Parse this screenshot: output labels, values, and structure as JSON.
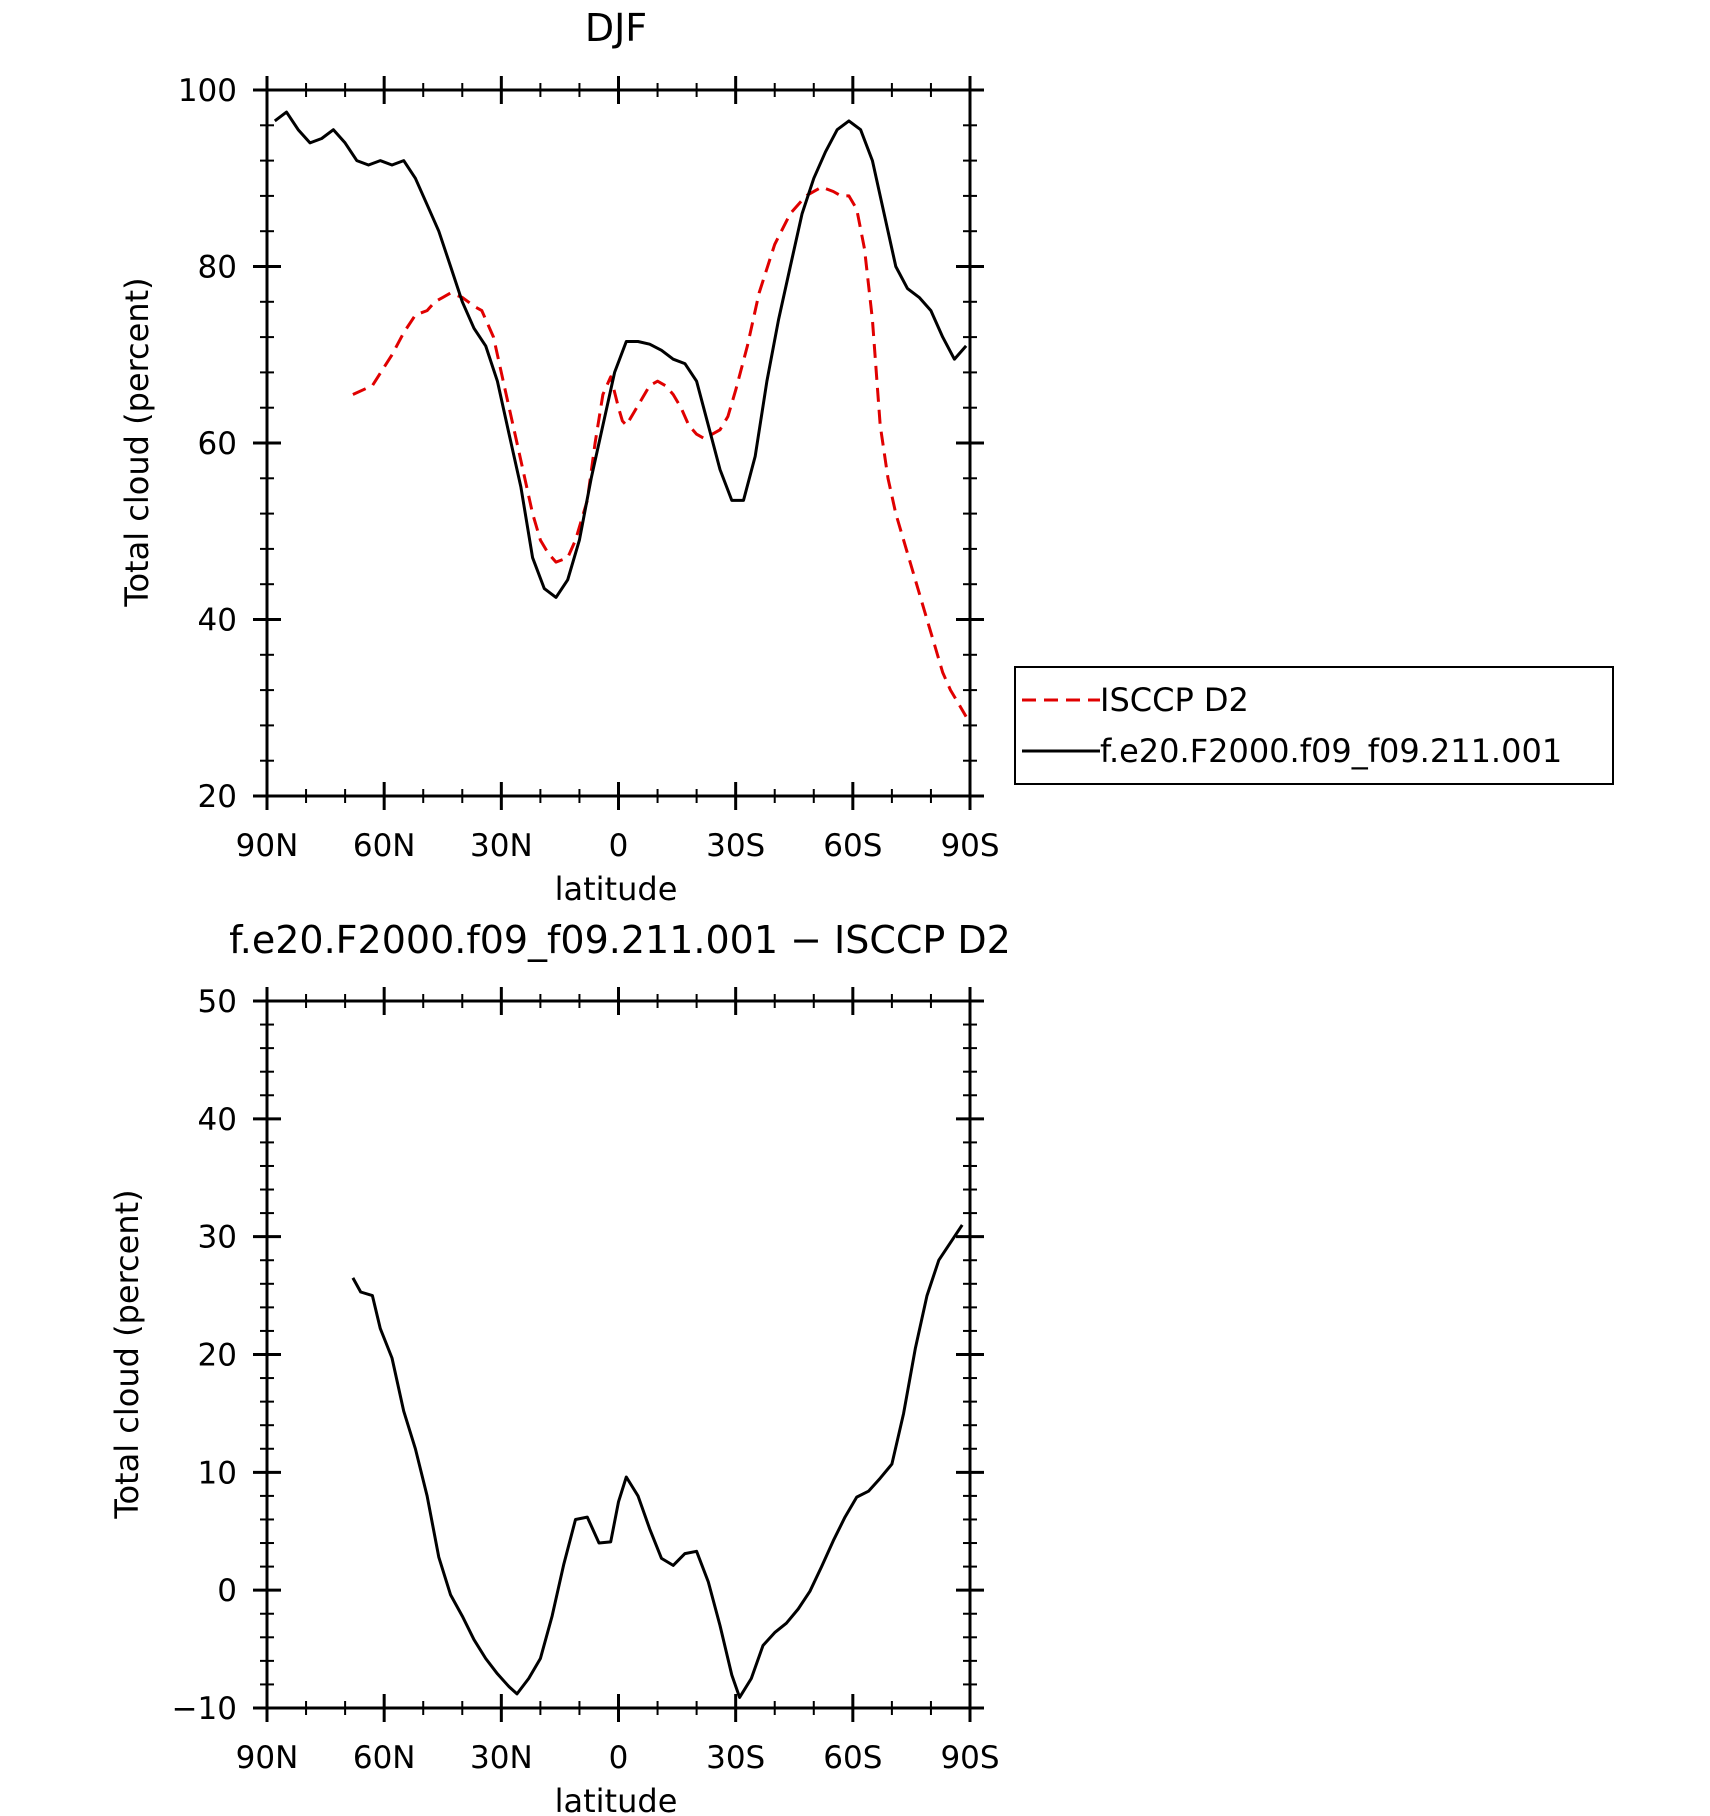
{
  "chart_data": [
    {
      "type": "line",
      "title": "DJF",
      "xlabel": "latitude",
      "ylabel": "Total cloud (percent)",
      "xlim": [
        90,
        -90
      ],
      "ylim": [
        20,
        100
      ],
      "xticks": [
        90,
        60,
        30,
        0,
        -30,
        -60,
        -90
      ],
      "xtick_labels": [
        "90N",
        "60N",
        "30N",
        "0",
        "30S",
        "60S",
        "90S"
      ],
      "yticks": [
        20,
        40,
        60,
        80,
        100
      ],
      "ytick_labels": [
        "20",
        "40",
        "60",
        "80",
        "100"
      ],
      "legend_position": "right",
      "series": [
        {
          "name": "ISCCP D2",
          "color": "#e00000",
          "style": "dashed",
          "x": [
            68,
            63,
            58,
            55,
            52,
            49,
            47,
            45,
            43,
            40,
            37,
            35,
            32,
            29,
            26,
            24,
            22,
            20,
            18,
            16,
            13,
            11,
            8,
            6,
            4,
            2,
            0,
            -1,
            -2,
            -4,
            -6,
            -8,
            -10,
            -12,
            -14,
            -16,
            -18,
            -20,
            -22,
            -24,
            -26,
            -28,
            -30,
            -33,
            -36,
            -40,
            -44,
            -48,
            -52,
            -55,
            -57,
            -59,
            -61,
            -63,
            -65,
            -67,
            -69,
            -71,
            -73,
            -75,
            -77,
            -79,
            -81,
            -83,
            -85,
            -87,
            -89
          ],
          "y": [
            65.5,
            66.5,
            70,
            72.5,
            74.5,
            75,
            76,
            76.5,
            77,
            76.5,
            75.5,
            75,
            72,
            66,
            60,
            56,
            52,
            49,
            47.5,
            46.5,
            47,
            49,
            53.5,
            60,
            65.5,
            67.5,
            64,
            62.5,
            62,
            63.5,
            65,
            66.5,
            67,
            66.5,
            65.5,
            64,
            62,
            61,
            60.5,
            61,
            61.5,
            63,
            66,
            71,
            77,
            82.5,
            86,
            88,
            89,
            88.5,
            88,
            88,
            86.5,
            82,
            74,
            62,
            56,
            52,
            49,
            46,
            43,
            40,
            37,
            34,
            32,
            30.5,
            29
          ]
        },
        {
          "name": "f.e20.F2000.f09_f09.211.001",
          "color": "#000000",
          "style": "solid",
          "x": [
            88,
            85,
            82,
            79,
            76,
            73,
            70,
            67,
            64,
            61,
            58,
            55,
            52,
            49,
            46,
            43,
            40,
            37,
            34,
            31,
            28,
            25,
            22,
            19,
            16,
            13,
            10,
            7,
            4,
            1,
            -2,
            -5,
            -8,
            -11,
            -14,
            -17,
            -20,
            -23,
            -26,
            -29,
            -32,
            -35,
            -38,
            -41,
            -44,
            -47,
            -50,
            -53,
            -56,
            -59,
            -62,
            -65,
            -68,
            -71,
            -74,
            -77,
            -80,
            -83,
            -86,
            -89
          ],
          "y": [
            96.5,
            97.5,
            95.5,
            94,
            94.5,
            95.5,
            94,
            92,
            91.5,
            92,
            91.5,
            92,
            90,
            87,
            84,
            80,
            76,
            73,
            71,
            67,
            61,
            55,
            47,
            43.5,
            42.5,
            44.5,
            49,
            56,
            62,
            68,
            71.5,
            71.5,
            71.2,
            70.5,
            69.5,
            69,
            67,
            62,
            57,
            53.5,
            53.5,
            58.5,
            67,
            74,
            80,
            86,
            90,
            93,
            95.5,
            96.5,
            95.5,
            92,
            86,
            80,
            77.5,
            76.5,
            75,
            72,
            69.5,
            71
          ]
        }
      ]
    },
    {
      "type": "line",
      "title": "f.e20.F2000.f09_f09.211.001 − ISCCP D2",
      "xlabel": "latitude",
      "ylabel": "Total cloud (percent)",
      "xlim": [
        90,
        -90
      ],
      "ylim": [
        -10,
        50
      ],
      "xticks": [
        90,
        60,
        30,
        0,
        -30,
        -60,
        -90
      ],
      "xtick_labels": [
        "90N",
        "60N",
        "30N",
        "0",
        "30S",
        "60S",
        "90S"
      ],
      "yticks": [
        -10,
        0,
        10,
        20,
        30,
        40,
        50
      ],
      "ytick_labels": [
        "−10",
        "0",
        "10",
        "20",
        "30",
        "40",
        "50"
      ],
      "series": [
        {
          "color": "#000000",
          "style": "solid",
          "x": [
            68,
            66,
            63,
            61,
            58,
            55,
            52,
            49,
            46,
            43,
            40,
            37,
            34,
            31,
            28,
            26,
            23,
            20,
            17,
            14,
            11,
            8,
            5,
            2,
            0,
            -2,
            -5,
            -8,
            -11,
            -14,
            -17,
            -20,
            -23,
            -26,
            -29,
            -31,
            -34,
            -37,
            -40,
            -43,
            -46,
            -49,
            -52,
            -55,
            -58,
            -61,
            -64,
            -67,
            -70,
            -73,
            -76,
            -79,
            -82,
            -85,
            -88
          ],
          "y": [
            26.5,
            25.3,
            25,
            22.2,
            19.7,
            15.2,
            12,
            8,
            2.8,
            -0.4,
            -2.2,
            -4.2,
            -5.8,
            -7.1,
            -8.2,
            -8.8,
            -7.5,
            -5.8,
            -2.2,
            2.2,
            6,
            6.2,
            4,
            4.1,
            7.5,
            9.6,
            8,
            5.2,
            2.7,
            2.1,
            3.1,
            3.3,
            0.7,
            -3,
            -7.2,
            -9.1,
            -7.5,
            -4.7,
            -3.6,
            -2.8,
            -1.6,
            -0.1,
            2,
            4.2,
            6.2,
            7.9,
            8.4,
            9.5,
            10.7,
            15,
            20.5,
            25,
            28,
            29.5,
            31
          ]
        }
      ]
    }
  ]
}
